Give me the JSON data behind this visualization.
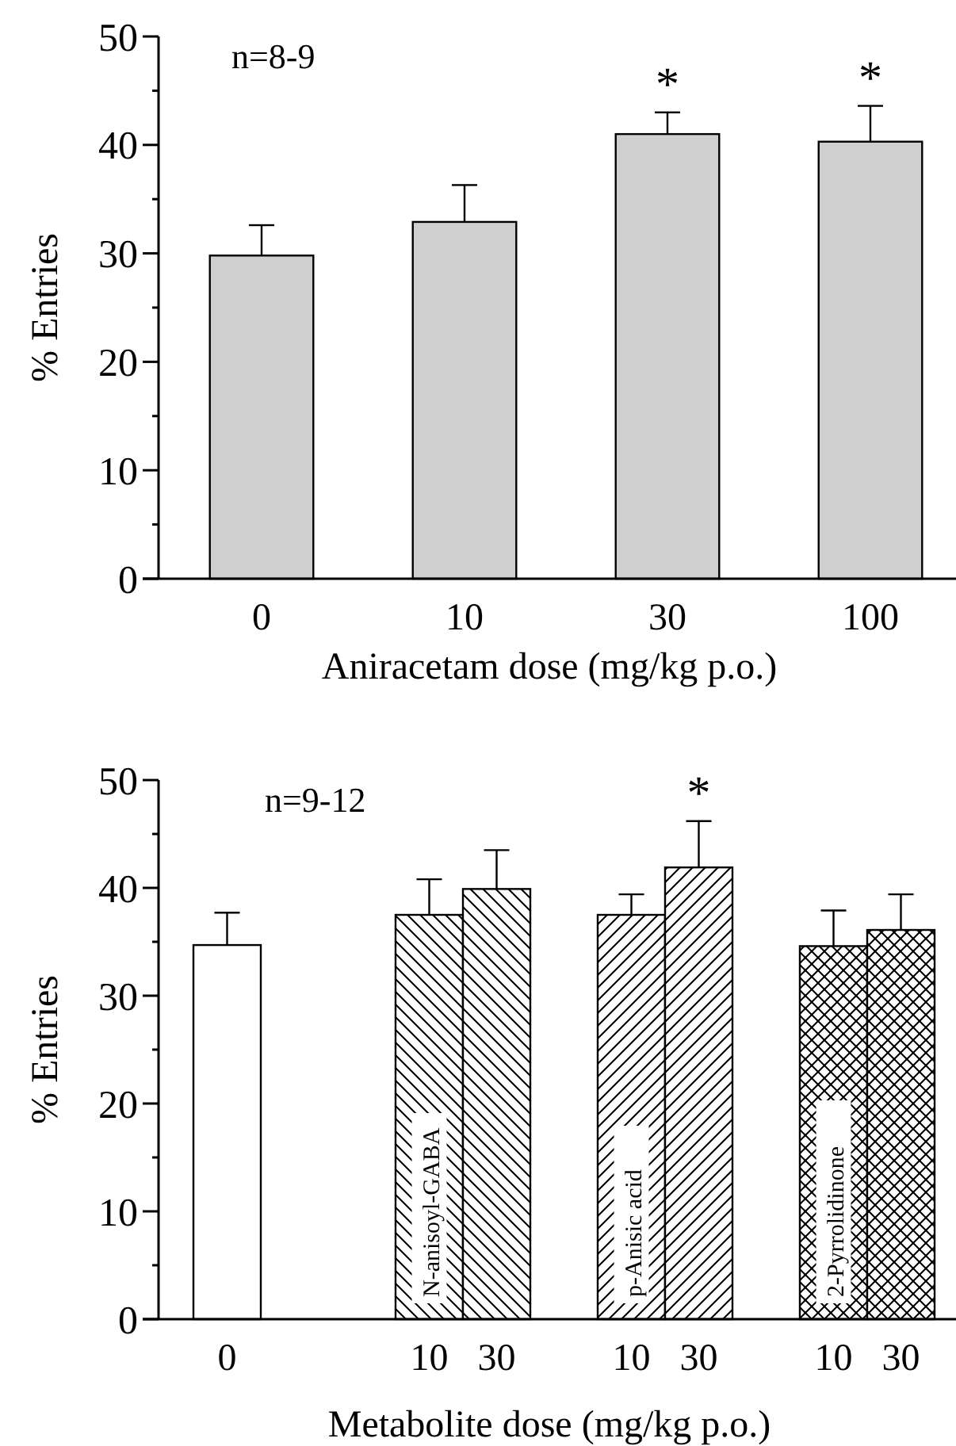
{
  "chart_data": [
    {
      "type": "bar",
      "xlabel": "Aniracetam dose (mg/kg p.o.)",
      "ylabel": "% Entries",
      "categories": [
        "0",
        "10",
        "30",
        "100"
      ],
      "series": [
        {
          "color": "#cfcfcf",
          "values": [
            29.8,
            32.9,
            41.0,
            40.3
          ],
          "errors": [
            [
              29.8,
              32.6
            ],
            [
              32.9,
              36.3
            ],
            [
              41.0,
              43.0
            ],
            [
              40.3,
              43.6
            ]
          ]
        }
      ],
      "ylim": [
        0,
        50
      ],
      "yticks": [
        0,
        {
          "value": 5,
          "label": null
        },
        10,
        {
          "value": 15,
          "label": null
        },
        20,
        {
          "value": 25,
          "label": null
        },
        30,
        {
          "value": 35,
          "label": null
        },
        40,
        {
          "value": 45,
          "label": null
        },
        50
      ],
      "annotations": [
        "n=8-9",
        {
          "text": "*",
          "x": "30",
          "y": 43.0
        },
        {
          "text": "*",
          "x": "100",
          "y": 43.6
        }
      ]
    },
    {
      "type": "bar",
      "xlabel": "Metabolite dose (mg/kg p.o.)",
      "ylabel": "% Entries",
      "categories": [
        "0",
        null,
        null,
        "10",
        "30",
        null,
        "10",
        "30",
        null,
        "10",
        "30"
      ],
      "series": [
        {
          "color": "#ffffff",
          "values": [
            34.7,
            null,
            null,
            null,
            null,
            null,
            null,
            null,
            null,
            null,
            null
          ],
          "errors": [
            [
              34.7,
              37.7
            ],
            null,
            null,
            null,
            null,
            null,
            null,
            null,
            null,
            null,
            null
          ]
        },
        {
          "name": "N-anisoyl-GABA",
          "color": "#000000",
          "values": [
            null,
            null,
            null,
            37.5,
            39.9,
            null,
            null,
            null,
            null,
            null,
            null
          ],
          "errors": [
            null,
            null,
            null,
            [
              37.5,
              40.8
            ],
            [
              39.9,
              43.5
            ],
            null,
            null,
            null,
            null,
            null,
            null
          ]
        },
        {
          "name": "p-Anisic acid",
          "color": "#000000",
          "values": [
            null,
            null,
            null,
            null,
            null,
            null,
            37.5,
            41.9,
            null,
            null,
            null
          ],
          "errors": [
            null,
            null,
            null,
            null,
            null,
            null,
            [
              37.5,
              39.4
            ],
            [
              41.9,
              46.2
            ],
            null,
            null,
            null
          ]
        },
        {
          "name": "2-Pyrrolidinone",
          "color": "#000000",
          "values": [
            null,
            null,
            null,
            null,
            null,
            null,
            null,
            null,
            null,
            34.6,
            36.1
          ],
          "errors": [
            null,
            null,
            null,
            null,
            null,
            null,
            null,
            null,
            null,
            [
              34.6,
              37.9
            ],
            [
              36.1,
              39.4
            ]
          ]
        }
      ],
      "ylim": [
        0,
        50
      ],
      "yticks": [
        0,
        {
          "value": 5,
          "label": null
        },
        10,
        {
          "value": 15,
          "label": null
        },
        20,
        {
          "value": 25,
          "label": null
        },
        30,
        {
          "value": 35,
          "label": null
        },
        40,
        {
          "value": 45,
          "label": null
        },
        50
      ],
      "annotations": [
        "n=9-12",
        "*"
      ]
    }
  ]
}
